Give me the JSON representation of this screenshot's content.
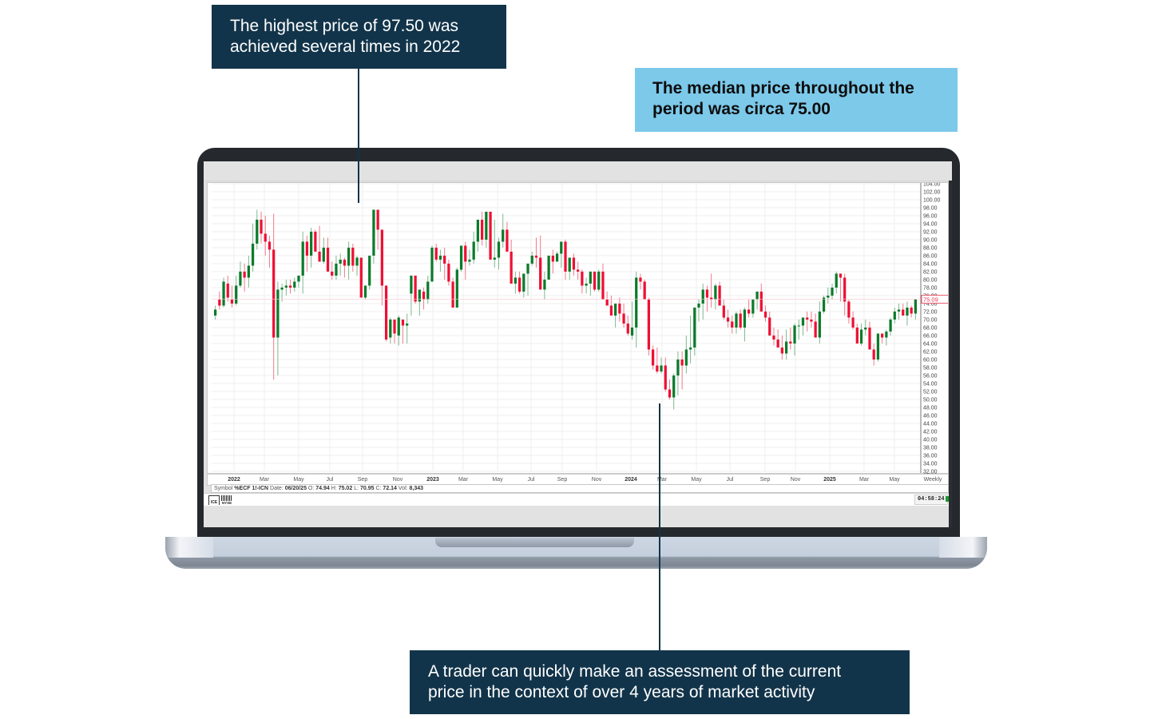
{
  "callouts": {
    "top_left": {
      "line1": "The highest price of 97.50 was",
      "line2": "achieved several times in 2022"
    },
    "top_right": {
      "line1": "The median price throughout the",
      "line2": "period was circa 75.00"
    },
    "bottom": {
      "line1": "A trader can quickly make an assessment of the current",
      "line2": "price in the context of over 4 years of market activity"
    }
  },
  "colors": {
    "callout_dark": "#12344a",
    "callout_light": "#7cc9ea",
    "up_candle": "#0a7a2a",
    "down_candle": "#ee0f33",
    "current_price": "#e8334f"
  },
  "status": {
    "symbol_label": "Symbol",
    "symbol": "%ECF 1!-ICN",
    "date_label": "Date:",
    "date": "06/20/25",
    "open_label": "O:",
    "open": "74.94",
    "high_label": "H:",
    "high": "75.02",
    "low_label": "L:",
    "low": "70.95",
    "close_label": "C:",
    "close": "72.14",
    "vol_label": "Vol:",
    "vol": "8,343"
  },
  "footer": {
    "ice_label": "ICE",
    "nyse_label": "NYSE",
    "clock": "04:58:24"
  },
  "chart_data": {
    "type": "candlestick",
    "title": "",
    "interval": "Weekly",
    "xlabel": "",
    "ylabel": "",
    "ylim": [
      32,
      104
    ],
    "grid": true,
    "current_price_label": "75.09",
    "y_ticks": [
      "104.00",
      "102.00",
      "100.00",
      "98.00",
      "96.00",
      "94.00",
      "92.00",
      "90.00",
      "88.00",
      "86.00",
      "84.00",
      "82.00",
      "80.00",
      "78.00",
      "76.00",
      "74.00",
      "72.00",
      "70.00",
      "68.00",
      "66.00",
      "64.00",
      "62.00",
      "60.00",
      "58.00",
      "56.00",
      "54.00",
      "52.00",
      "50.00",
      "48.00",
      "46.00",
      "44.00",
      "42.00",
      "40.00",
      "38.00",
      "36.00",
      "34.00",
      "32.00"
    ],
    "x_ticks": [
      {
        "label": "2022",
        "x": 293,
        "bold": true
      },
      {
        "label": "Mar",
        "x": 331,
        "bold": false
      },
      {
        "label": "May",
        "x": 374,
        "bold": false
      },
      {
        "label": "Jul",
        "x": 413,
        "bold": false
      },
      {
        "label": "Sep",
        "x": 454,
        "bold": false
      },
      {
        "label": "Nov",
        "x": 498,
        "bold": false
      },
      {
        "label": "2023",
        "x": 542,
        "bold": true
      },
      {
        "label": "Mar",
        "x": 580,
        "bold": false
      },
      {
        "label": "May",
        "x": 623,
        "bold": false
      },
      {
        "label": "Jul",
        "x": 665,
        "bold": false
      },
      {
        "label": "Sep",
        "x": 704,
        "bold": false
      },
      {
        "label": "Nov",
        "x": 747,
        "bold": false
      },
      {
        "label": "2024",
        "x": 790,
        "bold": true
      },
      {
        "label": "Mar",
        "x": 829,
        "bold": false
      },
      {
        "label": "May",
        "x": 872,
        "bold": false
      },
      {
        "label": "Jul",
        "x": 914,
        "bold": false
      },
      {
        "label": "Sep",
        "x": 958,
        "bold": false
      },
      {
        "label": "Nov",
        "x": 996,
        "bold": false
      },
      {
        "label": "2025",
        "x": 1039,
        "bold": true
      },
      {
        "label": "Mar",
        "x": 1082,
        "bold": false
      },
      {
        "label": "May",
        "x": 1120,
        "bold": false
      },
      {
        "label": "Weekly",
        "x": 1168,
        "bold": false
      }
    ],
    "candles": [
      [
        71.0,
        73.5,
        70.0,
        72.5
      ],
      [
        75.0,
        77.0,
        72.5,
        73.5
      ],
      [
        73.5,
        80.5,
        73.0,
        79.5
      ],
      [
        79.0,
        81.0,
        74.5,
        75.5
      ],
      [
        75.0,
        78.5,
        73.0,
        74.0
      ],
      [
        74.0,
        81.0,
        73.5,
        78.5
      ],
      [
        78.5,
        84.5,
        78.0,
        82.0
      ],
      [
        82.0,
        84.0,
        77.0,
        80.5
      ],
      [
        80.5,
        86.0,
        78.0,
        83.5
      ],
      [
        83.5,
        94.0,
        82.0,
        89.0
      ],
      [
        89.0,
        97.5,
        87.5,
        95.0
      ],
      [
        95.0,
        97.0,
        89.0,
        91.5
      ],
      [
        91.5,
        96.0,
        86.0,
        89.5
      ],
      [
        89.5,
        91.0,
        83.0,
        87.5
      ],
      [
        87.5,
        96.5,
        55.0,
        65.5
      ],
      [
        65.5,
        79.5,
        56.0,
        77.5
      ],
      [
        77.5,
        79.0,
        74.5,
        78.0
      ],
      [
        78.0,
        80.0,
        76.0,
        78.5
      ],
      [
        78.5,
        80.0,
        76.5,
        78.0
      ],
      [
        78.0,
        80.5,
        77.0,
        79.5
      ],
      [
        79.5,
        81.0,
        78.0,
        81.0
      ],
      [
        81.0,
        92.0,
        76.5,
        89.5
      ],
      [
        89.5,
        91.0,
        82.0,
        86.0
      ],
      [
        86.0,
        93.0,
        83.0,
        92.0
      ],
      [
        92.0,
        92.5,
        87.5,
        87.0
      ],
      [
        87.0,
        93.5,
        84.5,
        84.5
      ],
      [
        84.5,
        90.5,
        84.0,
        88.0
      ],
      [
        88.0,
        90.5,
        82.5,
        82.0
      ],
      [
        82.0,
        84.5,
        80.0,
        81.0
      ],
      [
        81.0,
        86.0,
        80.0,
        84.0
      ],
      [
        84.0,
        86.5,
        81.0,
        85.0
      ],
      [
        85.0,
        85.5,
        80.5,
        83.5
      ],
      [
        83.5,
        89.5,
        80.0,
        88.0
      ],
      [
        88.0,
        89.0,
        82.0,
        83.5
      ],
      [
        83.5,
        86.0,
        81.0,
        85.5
      ],
      [
        85.5,
        85.5,
        75.5,
        75.5
      ],
      [
        75.5,
        77.5,
        75.0,
        78.5
      ],
      [
        78.5,
        85.5,
        77.5,
        86.0
      ],
      [
        86.0,
        92.5,
        84.0,
        97.5
      ],
      [
        97.5,
        96.0,
        87.5,
        92.5
      ],
      [
        92.5,
        92.5,
        73.5,
        78.5
      ],
      [
        78.5,
        78.5,
        64.5,
        65.0
      ],
      [
        65.5,
        70.5,
        64.0,
        70.0
      ],
      [
        70.0,
        70.0,
        64.0,
        66.5
      ],
      [
        66.0,
        71.0,
        63.5,
        70.5
      ],
      [
        70.0,
        69.5,
        64.0,
        68.5
      ],
      [
        68.5,
        71.5,
        64.0,
        69.0
      ],
      [
        76.5,
        76.5,
        71.0,
        81.0
      ],
      [
        81.0,
        81.0,
        74.0,
        74.5
      ],
      [
        74.5,
        77.0,
        71.0,
        77.5
      ],
      [
        77.0,
        78.0,
        72.5,
        75.0
      ],
      [
        75.0,
        81.0,
        74.0,
        79.5
      ],
      [
        79.5,
        88.5,
        79.5,
        88.0
      ],
      [
        88.0,
        89.0,
        84.5,
        85.0
      ],
      [
        85.0,
        87.5,
        82.0,
        86.0
      ],
      [
        86.0,
        88.0,
        80.0,
        84.0
      ],
      [
        84.0,
        85.0,
        78.5,
        79.5
      ],
      [
        79.5,
        80.5,
        76.5,
        73.0
      ],
      [
        73.0,
        83.0,
        73.0,
        82.5
      ],
      [
        82.5,
        88.0,
        82.0,
        88.5
      ],
      [
        88.5,
        89.5,
        80.0,
        84.5
      ],
      [
        84.5,
        87.5,
        83.5,
        85.0
      ],
      [
        85.0,
        92.0,
        84.0,
        89.5
      ],
      [
        89.5,
        93.5,
        87.0,
        95.0
      ],
      [
        95.0,
        97.0,
        88.5,
        90.0
      ],
      [
        90.0,
        96.0,
        88.0,
        97.0
      ],
      [
        97.0,
        97.0,
        85.0,
        85.0
      ],
      [
        85.0,
        95.0,
        83.0,
        85.5
      ],
      [
        85.5,
        90.5,
        82.5,
        89.5
      ],
      [
        89.5,
        96.5,
        88.0,
        92.5
      ],
      [
        92.5,
        94.5,
        89.0,
        87.0
      ],
      [
        87.0,
        90.0,
        79.5,
        79.0
      ],
      [
        79.0,
        82.0,
        76.5,
        80.5
      ],
      [
        80.5,
        82.0,
        76.5,
        77.0
      ],
      [
        77.0,
        81.5,
        75.5,
        81.5
      ],
      [
        81.5,
        84.0,
        76.0,
        84.0
      ],
      [
        84.0,
        87.0,
        83.5,
        86.0
      ],
      [
        86.0,
        90.5,
        83.0,
        85.5
      ],
      [
        85.5,
        91.0,
        81.0,
        77.5
      ],
      [
        77.5,
        82.0,
        75.0,
        80.0
      ],
      [
        80.0,
        85.0,
        80.0,
        86.0
      ],
      [
        86.0,
        87.5,
        81.5,
        84.5
      ],
      [
        84.5,
        87.0,
        84.5,
        86.5
      ],
      [
        86.5,
        89.0,
        83.0,
        89.5
      ],
      [
        89.5,
        90.0,
        80.0,
        82.0
      ],
      [
        82.0,
        85.5,
        80.0,
        85.5
      ],
      [
        85.5,
        86.5,
        81.0,
        82.5
      ],
      [
        82.5,
        84.5,
        80.0,
        82.0
      ],
      [
        82.0,
        82.5,
        76.5,
        78.5
      ],
      [
        78.5,
        80.5,
        76.5,
        79.0
      ],
      [
        79.0,
        80.5,
        76.0,
        82.0
      ],
      [
        82.0,
        82.0,
        77.0,
        77.5
      ],
      [
        77.5,
        82.5,
        77.0,
        82.0
      ],
      [
        82.0,
        84.0,
        75.5,
        75.0
      ],
      [
        75.0,
        77.0,
        73.5,
        73.5
      ],
      [
        73.5,
        76.0,
        71.5,
        71.0
      ],
      [
        71.0,
        74.0,
        68.0,
        74.0
      ],
      [
        74.0,
        75.5,
        69.5,
        71.5
      ],
      [
        71.5,
        74.0,
        68.0,
        69.0
      ],
      [
        69.0,
        71.0,
        66.0,
        66.5
      ],
      [
        66.0,
        74.5,
        65.0,
        68.0
      ],
      [
        68.0,
        82.0,
        63.0,
        80.5
      ],
      [
        80.5,
        81.5,
        77.5,
        79.5
      ],
      [
        79.5,
        80.0,
        76.0,
        75.0
      ],
      [
        75.0,
        75.5,
        61.0,
        62.5
      ],
      [
        62.5,
        63.5,
        57.5,
        58.5
      ],
      [
        58.5,
        63.0,
        56.5,
        57.0
      ],
      [
        57.0,
        60.5,
        56.5,
        58.5
      ],
      [
        58.5,
        60.5,
        52.0,
        52.5
      ],
      [
        52.5,
        55.0,
        50.0,
        50.5
      ],
      [
        50.5,
        56.5,
        47.5,
        56.0
      ],
      [
        56.0,
        62.0,
        51.0,
        60.0
      ],
      [
        60.0,
        62.0,
        52.5,
        58.5
      ],
      [
        58.5,
        66.0,
        56.5,
        62.5
      ],
      [
        62.5,
        71.0,
        59.0,
        63.0
      ],
      [
        63.0,
        72.0,
        61.0,
        73.0
      ],
      [
        73.0,
        75.0,
        69.5,
        74.0
      ],
      [
        74.0,
        79.0,
        70.0,
        77.5
      ],
      [
        77.5,
        78.5,
        72.0,
        75.5
      ],
      [
        75.5,
        81.5,
        73.0,
        75.0
      ],
      [
        75.0,
        79.0,
        72.5,
        78.5
      ],
      [
        78.5,
        79.5,
        74.0,
        73.5
      ],
      [
        73.5,
        75.0,
        70.0,
        70.5
      ],
      [
        70.5,
        72.5,
        68.0,
        69.5
      ],
      [
        69.5,
        71.0,
        66.5,
        68.0
      ],
      [
        68.0,
        72.0,
        66.5,
        71.5
      ],
      [
        71.5,
        72.5,
        67.5,
        68.0
      ],
      [
        68.0,
        73.0,
        64.5,
        72.5
      ],
      [
        72.5,
        75.0,
        70.5,
        71.5
      ],
      [
        71.5,
        75.0,
        70.5,
        75.0
      ],
      [
        75.0,
        77.0,
        72.5,
        77.0
      ],
      [
        77.0,
        79.0,
        74.0,
        72.0
      ],
      [
        72.0,
        73.5,
        69.5,
        70.5
      ],
      [
        70.5,
        72.0,
        66.5,
        66.0
      ],
      [
        66.0,
        68.0,
        63.5,
        65.0
      ],
      [
        65.0,
        67.5,
        63.0,
        63.0
      ],
      [
        63.0,
        66.0,
        60.0,
        61.5
      ],
      [
        61.5,
        67.5,
        60.0,
        64.5
      ],
      [
        64.5,
        68.0,
        62.5,
        64.0
      ],
      [
        64.0,
        69.0,
        61.0,
        68.5
      ],
      [
        68.5,
        70.0,
        65.0,
        68.5
      ],
      [
        68.5,
        70.0,
        66.0,
        70.5
      ],
      [
        70.5,
        72.0,
        67.0,
        70.0
      ],
      [
        70.0,
        72.0,
        68.0,
        69.5
      ],
      [
        69.5,
        71.5,
        66.0,
        65.5
      ],
      [
        65.5,
        74.5,
        64.0,
        72.0
      ],
      [
        72.0,
        76.0,
        71.5,
        75.5
      ],
      [
        75.5,
        78.0,
        74.0,
        76.0
      ],
      [
        76.0,
        79.0,
        75.0,
        78.0
      ],
      [
        78.0,
        82.0,
        76.5,
        81.5
      ],
      [
        81.5,
        81.0,
        74.5,
        80.5
      ],
      [
        80.5,
        81.5,
        71.0,
        74.5
      ],
      [
        74.5,
        75.0,
        69.0,
        70.5
      ],
      [
        70.5,
        72.0,
        67.5,
        68.0
      ],
      [
        68.0,
        69.0,
        64.5,
        64.0
      ],
      [
        64.0,
        69.0,
        63.5,
        67.5
      ],
      [
        67.5,
        70.0,
        66.0,
        68.0
      ],
      [
        68.0,
        69.5,
        63.0,
        62.5
      ],
      [
        62.5,
        64.0,
        58.5,
        60.0
      ],
      [
        60.0,
        66.5,
        59.5,
        66.5
      ],
      [
        66.5,
        66.5,
        64.0,
        65.5
      ],
      [
        65.5,
        67.5,
        63.5,
        67.0
      ],
      [
        67.0,
        70.5,
        66.0,
        70.0
      ],
      [
        70.0,
        73.0,
        69.0,
        72.0
      ],
      [
        72.0,
        74.0,
        70.0,
        72.5
      ],
      [
        72.5,
        74.0,
        71.0,
        71.0
      ],
      [
        71.0,
        74.5,
        68.5,
        73.0
      ],
      [
        73.0,
        73.5,
        70.5,
        71.5
      ],
      [
        71.5,
        74.5,
        70.0,
        75.1
      ]
    ]
  }
}
